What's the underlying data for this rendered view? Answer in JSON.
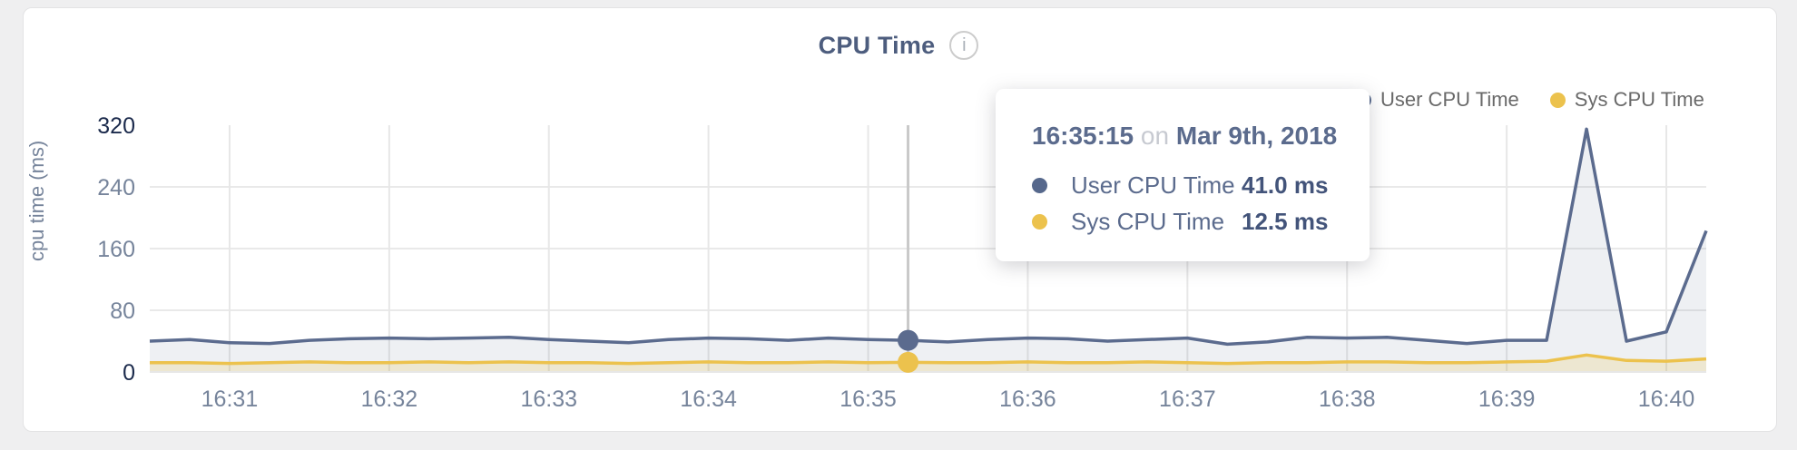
{
  "page": {
    "background": "#efeff0"
  },
  "card": {
    "title": "CPU Time",
    "info_icon_glyph": "i"
  },
  "legend": {
    "items": [
      {
        "label": "User CPU Time",
        "color": "#56688c"
      },
      {
        "label": "Sys CPU Time",
        "color": "#ecc24d"
      }
    ]
  },
  "tooltip": {
    "time": "16:35:15",
    "connector": "on",
    "date": "Mar 9th, 2018",
    "rows": [
      {
        "label": "User CPU Time",
        "value": "41.0 ms",
        "color": "#56688c"
      },
      {
        "label": "Sys CPU Time",
        "value": "12.5 ms",
        "color": "#ecc24d"
      }
    ]
  },
  "chart_data": {
    "type": "line",
    "title": "CPU Time",
    "xlabel": "",
    "ylabel": "cpu time (ms)",
    "ylim": [
      0,
      320
    ],
    "y_ticks": [
      0,
      80,
      160,
      240,
      320
    ],
    "x_tick_labels": [
      "16:31",
      "16:32",
      "16:33",
      "16:34",
      "16:35",
      "16:36",
      "16:37",
      "16:38",
      "16:39",
      "16:40"
    ],
    "grid": true,
    "legend_position": "top-right",
    "sample_interval_seconds": 15,
    "x": [
      "16:30:30",
      "16:30:45",
      "16:31:00",
      "16:31:15",
      "16:31:30",
      "16:31:45",
      "16:32:00",
      "16:32:15",
      "16:32:30",
      "16:32:45",
      "16:33:00",
      "16:33:15",
      "16:33:30",
      "16:33:45",
      "16:34:00",
      "16:34:15",
      "16:34:30",
      "16:34:45",
      "16:35:00",
      "16:35:15",
      "16:35:30",
      "16:35:45",
      "16:36:00",
      "16:36:15",
      "16:36:30",
      "16:36:45",
      "16:37:00",
      "16:37:15",
      "16:37:30",
      "16:37:45",
      "16:38:00",
      "16:38:15",
      "16:38:30",
      "16:38:45",
      "16:39:00",
      "16:39:15",
      "16:39:30",
      "16:39:45",
      "16:40:00",
      "16:40:15"
    ],
    "series": [
      {
        "name": "User CPU Time",
        "color": "#5b6b8e",
        "fill": "rgba(86,104,140,0.10)",
        "values": [
          40,
          42,
          38,
          37,
          41,
          43,
          44,
          43,
          44,
          45,
          42,
          40,
          38,
          42,
          44,
          43,
          41,
          44,
          42,
          41,
          39,
          42,
          44,
          43,
          40,
          42,
          44,
          36,
          39,
          45,
          44,
          45,
          41,
          37,
          41,
          41,
          315,
          40,
          52,
          183
        ]
      },
      {
        "name": "Sys CPU Time",
        "color": "#ecc24d",
        "fill": "rgba(236,194,77,0.20)",
        "values": [
          12,
          12,
          11,
          12,
          13,
          12,
          12,
          13,
          12,
          13,
          12,
          12,
          11,
          12,
          13,
          12,
          12,
          13,
          12,
          12.5,
          12,
          12,
          13,
          12,
          12,
          13,
          12,
          11,
          12,
          12,
          13,
          13,
          12,
          12,
          13,
          14,
          22,
          15,
          14,
          17
        ]
      }
    ],
    "hover_index": 19
  }
}
